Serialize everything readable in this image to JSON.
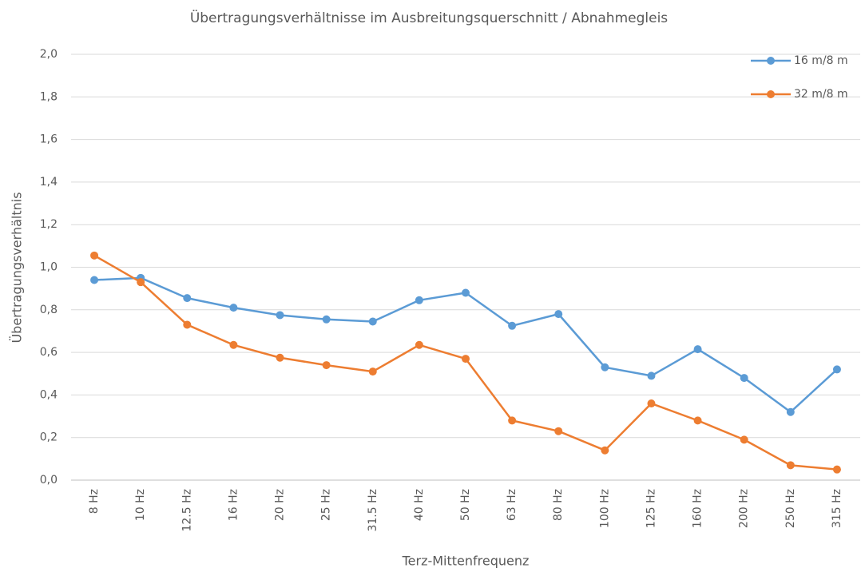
{
  "chart_data": {
    "type": "line",
    "title": "Übertragungsverhältnisse im Ausbreitungsquerschnitt / Abnahmegleis",
    "x_label": "Terz-Mittenfrequenz",
    "y_label": "Übertragungsverhältnis",
    "categories": [
      "8 Hz",
      "10 Hz",
      "12.5 Hz",
      "16 Hz",
      "20 Hz",
      "25 Hz",
      "31.5 Hz",
      "40 Hz",
      "50 Hz",
      "63 Hz",
      "80 Hz",
      "100 Hz",
      "125 Hz",
      "160 Hz",
      "200 Hz",
      "250 Hz",
      "315 Hz"
    ],
    "series": [
      {
        "name": "16 m/8 m",
        "color": "#5b9bd5",
        "values": [
          0.94,
          0.95,
          0.855,
          0.81,
          0.775,
          0.755,
          0.745,
          0.845,
          0.88,
          0.725,
          0.78,
          0.53,
          0.49,
          0.615,
          0.48,
          0.32,
          0.52
        ]
      },
      {
        "name": "32 m/8 m",
        "color": "#ed7d31",
        "values": [
          1.055,
          0.93,
          0.73,
          0.635,
          0.575,
          0.54,
          0.51,
          0.635,
          0.57,
          0.28,
          0.23,
          0.14,
          0.36,
          0.28,
          0.19,
          0.07,
          0.05
        ]
      }
    ],
    "ylim": [
      0,
      2
    ],
    "yticks": [
      {
        "value": 0,
        "label": "0,0"
      },
      {
        "value": 0.2,
        "label": "0,2"
      },
      {
        "value": 0.4,
        "label": "0,4"
      },
      {
        "value": 0.6,
        "label": "0,6"
      },
      {
        "value": 0.8,
        "label": "0,8"
      },
      {
        "value": 1,
        "label": "1,0"
      },
      {
        "value": 1.2,
        "label": "1,2"
      },
      {
        "value": 1.4,
        "label": "1,4"
      },
      {
        "value": 1.6,
        "label": "1,6"
      },
      {
        "value": 1.8,
        "label": "1,8"
      },
      {
        "value": 2,
        "label": "2,0"
      }
    ],
    "grid": true,
    "legend": "top-right"
  }
}
